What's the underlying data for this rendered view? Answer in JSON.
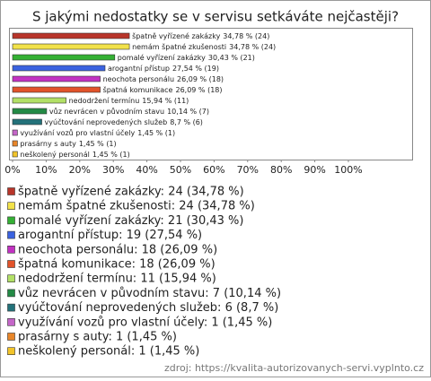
{
  "chart_data": {
    "type": "bar",
    "orientation": "horizontal",
    "title": "S jakými nedostatky se v servisu setkáváte nejčastěji?",
    "categories": [
      "špatně vyřízené zakázky",
      "nemám špatné zkušenosti",
      "pomalé vyřízení zakázky",
      "arogantní přístup",
      "neochota personálu",
      "špatná komunikace",
      "nedodržení termínu",
      "vůz nevrácen v původním stavu",
      "vyúčtování neprovedených služeb",
      "využívání vozů pro vlastní účely",
      "prasárny s auty",
      "neškolený personál"
    ],
    "values": [
      34.78,
      34.78,
      30.43,
      27.54,
      26.09,
      26.09,
      15.94,
      10.14,
      8.7,
      1.45,
      1.45,
      1.45
    ],
    "value_labels": [
      "34,78 % (24)",
      "34,78 % (24)",
      "30,43 % (21)",
      "27,54 % (19)",
      "26,09 % (18)",
      "26,09 % (18)",
      "15,94 % (11)",
      "10,14 % (7)",
      "8,7 % (6)",
      "1,45 % (1)",
      "1,45 % (1)",
      "1,45 % (1)"
    ],
    "colors": [
      "#b8352a",
      "#f2e24a",
      "#34b034",
      "#3a62e0",
      "#c232c2",
      "#e2532a",
      "#b2e066",
      "#238a45",
      "#23727a",
      "#c466c8",
      "#e8862a",
      "#f2c42a"
    ],
    "legend": [
      "špatně vyřízené zakázky: 24 (34,78 %)",
      "nemám špatné zkušenosti: 24 (34,78 %)",
      "pomalé vyřízení zakázky: 21 (30,43 %)",
      "arogantní přístup: 19 (27,54 %)",
      "neochota personálu: 18 (26,09 %)",
      "špatná komunikace: 18 (26,09 %)",
      "nedodržení termínu: 11 (15,94 %)",
      "vůz nevrácen v původním stavu: 7 (10,14 %)",
      "vyúčtování neprovedených služeb: 6 (8,7 %)",
      "využívání vozů pro vlastní účely: 1 (1,45 %)",
      "prasárny s auty: 1 (1,45 %)",
      "neškolený personál: 1 (1,45 %)"
    ],
    "xlim": [
      0,
      100
    ],
    "xticks": [
      {
        "value": 0,
        "label": "0%"
      },
      {
        "value": 10,
        "label": "10%"
      },
      {
        "value": 20,
        "label": "20%"
      },
      {
        "value": 30,
        "label": "30%"
      },
      {
        "value": 40,
        "label": "40%"
      },
      {
        "value": 50,
        "label": "50%"
      },
      {
        "value": 60,
        "label": "60%"
      },
      {
        "value": 70,
        "label": "70%"
      },
      {
        "value": 80,
        "label": "80%"
      },
      {
        "value": 90,
        "label": "90%"
      },
      {
        "value": 100,
        "label": "100%"
      }
    ],
    "source": "zdroj: https://kvalita-autorizovanych-servi.vyplnto.cz"
  }
}
